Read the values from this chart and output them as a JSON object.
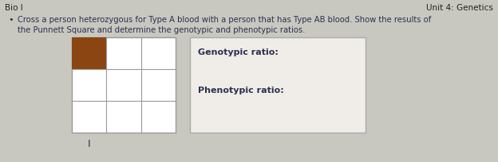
{
  "background_color": "#c8c8c0",
  "title_left": "Bio I",
  "title_right": "Unit 4: Genetics",
  "bullet_text_line1": "Cross a person heterozygous for Type A blood with a person that has Type AB blood. Show the results of",
  "bullet_text_line2": "the Punnett Square and determine the genotypic and phenotypic ratios.",
  "filled_cell_color": "#8B4513",
  "grid_color": "#999999",
  "grid_linewidth": 0.8,
  "box2_edge_color": "#aaaaaa",
  "box2_face_color": "#f0ede8",
  "genotypic_label": "Genotypic ratio:",
  "phenotypic_label": "Phenotypic ratio:",
  "cursor_symbol": "I",
  "text_color": "#2d3050",
  "title_color": "#222222",
  "font_size_title": 7.5,
  "font_size_body": 7.2,
  "font_size_ratio": 8.0
}
